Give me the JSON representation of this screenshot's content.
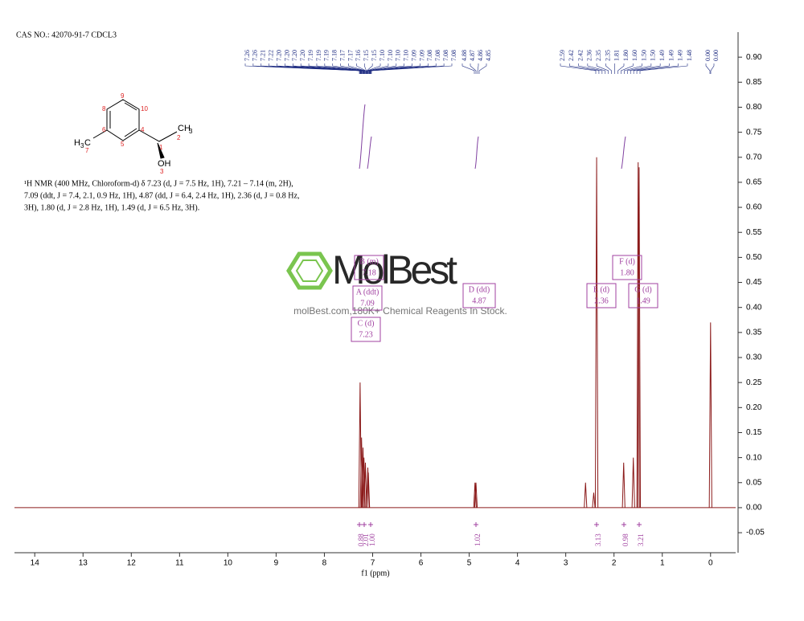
{
  "header": "CAS NO.: 42070-91-7 CDCL3",
  "structure": {
    "atoms": [
      "H",
      "3",
      "C",
      "7",
      "8",
      "9",
      "10",
      "4",
      "5",
      "6",
      "1",
      "2",
      "CH",
      "3",
      "OH",
      "3"
    ]
  },
  "description": [
    "¹H NMR (400 MHz, Chloroform-d) δ 7.23 (d, J = 7.5 Hz, 1H), 7.21 – 7.14 (m, 2H),",
    "7.09 (ddt, J = 7.4, 2.1, 0.9 Hz, 1H), 4.87 (dd, J = 6.4, 2.4 Hz, 1H), 2.36 (d, J = 0.8 Hz,",
    "3H), 1.80 (d, J = 2.8 Hz, 1H), 1.49 (d, J = 6.5 Hz, 3H)."
  ],
  "watermark": {
    "logo": "MolBest",
    "tagline": "molBest.com,180K+ Chemical Reagents In Stock."
  },
  "chart_data": {
    "type": "nmr",
    "xlabel": "f1 (ppm)",
    "color": "#8b1a1a",
    "xlim": [
      14.42,
      -0.52
    ],
    "ylim": [
      -0.09,
      0.95
    ],
    "xticks": [
      14,
      13,
      12,
      11,
      10,
      9,
      8,
      7,
      6,
      5,
      4,
      3,
      2,
      1,
      0
    ],
    "yticks": [
      {
        "value": -0.05,
        "label": "-0.05"
      },
      {
        "value": 0,
        "label": "0.00"
      },
      {
        "value": 0.05,
        "label": "0.05"
      },
      {
        "value": 0.1,
        "label": "0.10"
      },
      {
        "value": 0.15,
        "label": "0.15"
      },
      {
        "value": 0.2,
        "label": "0.20"
      },
      {
        "value": 0.25,
        "label": "0.25"
      },
      {
        "value": 0.3,
        "label": "0.30"
      },
      {
        "value": 0.35,
        "label": "0.35"
      },
      {
        "value": 0.4,
        "label": "0.40"
      },
      {
        "value": 0.45,
        "label": "0.45"
      },
      {
        "value": 0.5,
        "label": "0.50"
      },
      {
        "value": 0.55,
        "label": "0.55"
      },
      {
        "value": 0.6,
        "label": "0.60"
      },
      {
        "value": 0.65,
        "label": "0.65"
      },
      {
        "value": 0.7,
        "label": "0.70"
      },
      {
        "value": 0.75,
        "label": "0.75"
      },
      {
        "value": 0.8,
        "label": "0.80"
      },
      {
        "value": 0.85,
        "label": "0.85"
      },
      {
        "value": 0.9,
        "label": "0.90"
      }
    ],
    "x": [
      7.26,
      7.23,
      7.2,
      7.18,
      7.15,
      7.1,
      7.09,
      4.88,
      4.86,
      2.59,
      2.42,
      2.36,
      1.8,
      1.6,
      1.5,
      1.48,
      0
    ],
    "values": [
      0.25,
      0.14,
      0.12,
      0.1,
      0.09,
      0.08,
      0.07,
      0.05,
      0.05,
      0.05,
      0.03,
      0.7,
      0.09,
      0.1,
      0.69,
      0.68,
      0.37
    ],
    "peak_label_groups": [
      {
        "labels": [
          "7.26",
          "7.26",
          "7.21",
          "7.22",
          "7.20",
          "7.20",
          "7.20",
          "7.20",
          "7.19",
          "7.19",
          "7.19",
          "7.18",
          "7.17",
          "7.17",
          "7.16",
          "7.15",
          "7.15",
          "7.10",
          "7.10",
          "7.10",
          "7.10",
          "7.09",
          "7.09",
          "7.08",
          "7.08",
          "7.08",
          "7.08"
        ]
      },
      {
        "labels": [
          "4.88",
          "4.87",
          "4.86",
          "4.85"
        ]
      },
      {
        "labels": [
          "2.59",
          "2.42",
          "2.42",
          "2.36",
          "2.35",
          "2.35",
          "1.81",
          "1.80",
          "1.60",
          "1.50",
          "1.50",
          "1.49",
          "1.49",
          "1.49",
          "1.48"
        ]
      },
      {
        "labels": [
          "0.00",
          "0.00"
        ]
      }
    ],
    "multiplets": [
      {
        "name": "C (d)",
        "shift": "7.23"
      },
      {
        "name": "A (ddt)",
        "shift": "7.09"
      },
      {
        "name": "B (m)",
        "shift": "7.18"
      },
      {
        "name": "D (dd)",
        "shift": "4.87"
      },
      {
        "name": "E (d)",
        "shift": "2.36"
      },
      {
        "name": "F (d)",
        "shift": "1.80"
      },
      {
        "name": "G (d)",
        "shift": "1.49"
      }
    ],
    "integrals": [
      {
        "label": "0.88"
      },
      {
        "label": "2.01"
      },
      {
        "label": "1.00"
      },
      {
        "label": "1.02"
      },
      {
        "label": "3.13"
      },
      {
        "label": "0.98"
      },
      {
        "label": "3.21"
      }
    ]
  }
}
